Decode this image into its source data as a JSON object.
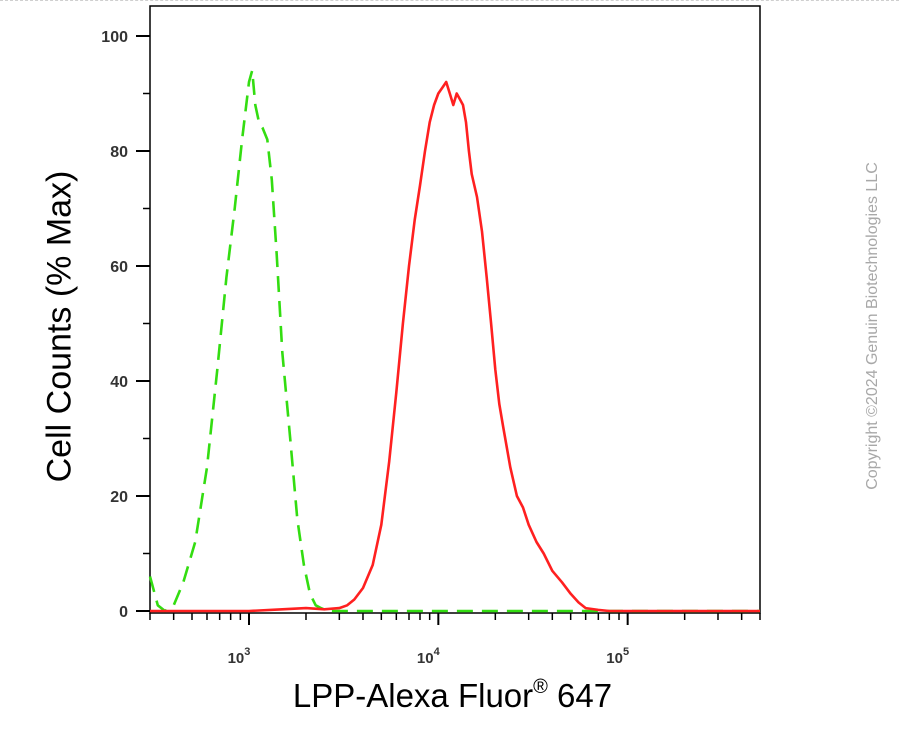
{
  "chart_data": {
    "type": "line",
    "xscale": "log",
    "xlim": [
      300,
      500000
    ],
    "ylim": [
      0,
      105
    ],
    "xlabel_main": "LPP-Alexa Fluor",
    "xlabel_reg": "®",
    "xlabel_tail": " 647",
    "ylabel": "Cell Counts (% Max)",
    "yticks": [
      0,
      20,
      40,
      60,
      80,
      100
    ],
    "xticks": [
      {
        "value": 1000,
        "base": "10",
        "exp": "3"
      },
      {
        "value": 10000,
        "base": "10",
        "exp": "4"
      },
      {
        "value": 100000,
        "base": "10",
        "exp": "5"
      }
    ],
    "grid": false,
    "series": [
      {
        "style": "dashed",
        "color": "#33dd11",
        "x": [
          300,
          330,
          360,
          400,
          450,
          520,
          600,
          680,
          760,
          840,
          920,
          1000,
          1040,
          1080,
          1130,
          1180,
          1250,
          1320,
          1400,
          1500,
          1650,
          1800,
          1950,
          2100,
          2250,
          2400,
          2600,
          3000,
          4000,
          6000,
          10000,
          30000,
          100000,
          500000
        ],
        "y": [
          6,
          1,
          0,
          1,
          5,
          12,
          25,
          42,
          58,
          70,
          82,
          92,
          94,
          88,
          85,
          84,
          82,
          75,
          62,
          45,
          30,
          16,
          8,
          3,
          1,
          0.5,
          0,
          0,
          0,
          0,
          0,
          0,
          0,
          0
        ]
      },
      {
        "style": "solid",
        "color": "#ff2020",
        "x": [
          300,
          1000,
          1500,
          2000,
          2500,
          3000,
          3300,
          3600,
          4000,
          4500,
          5000,
          5500,
          6000,
          6500,
          7000,
          7500,
          8000,
          8500,
          9000,
          9500,
          10000,
          10500,
          11000,
          11500,
          12000,
          12500,
          13000,
          13500,
          14000,
          14500,
          15000,
          16000,
          17000,
          18000,
          19000,
          20000,
          21000,
          22000,
          24000,
          26000,
          28000,
          30000,
          33000,
          36000,
          40000,
          45000,
          50000,
          55000,
          60000,
          70000,
          80000,
          100000,
          500000
        ],
        "y": [
          0,
          0,
          0.3,
          0.5,
          0.3,
          0.5,
          1,
          2,
          4,
          8,
          15,
          26,
          38,
          50,
          60,
          68,
          74,
          80,
          85,
          88,
          90,
          91,
          92,
          90,
          88,
          90,
          89,
          88,
          85,
          80,
          76,
          72,
          66,
          58,
          50,
          42,
          36,
          32,
          25,
          20,
          18,
          15,
          12,
          10,
          7,
          5,
          3,
          1.5,
          0.5,
          0.2,
          0,
          0,
          0
        ]
      }
    ]
  },
  "copyright": "Copyright ©2024 Genuin Biotechnologies LLC"
}
